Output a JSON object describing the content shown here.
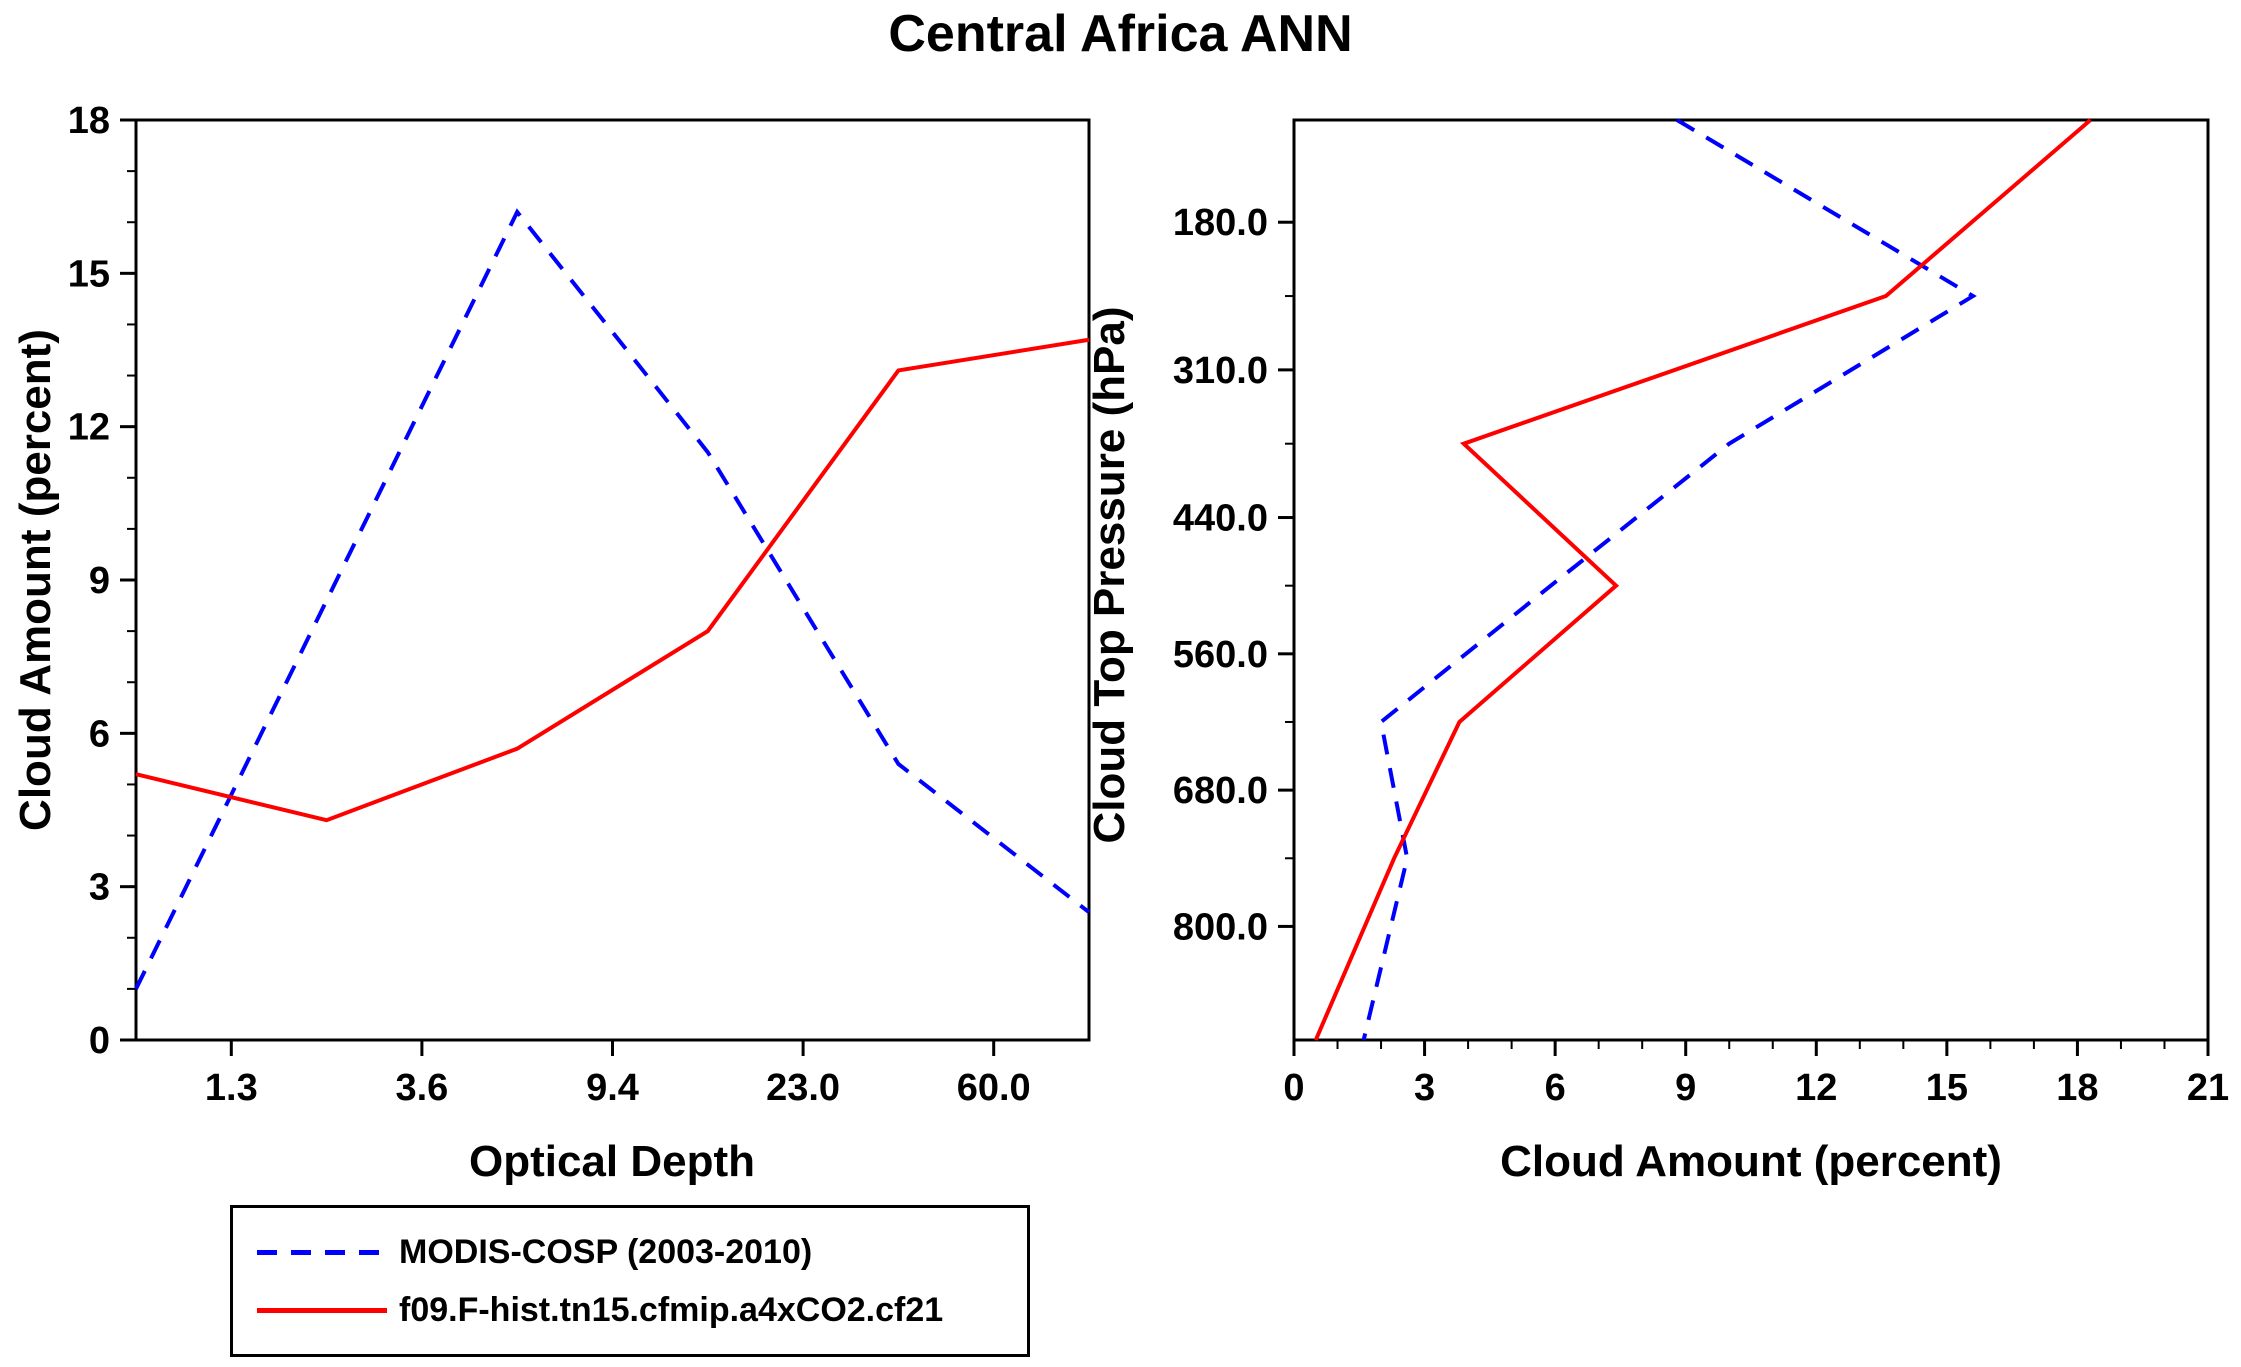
{
  "title": "Central Africa ANN",
  "style": {
    "background": "#ffffff",
    "axis_color": "#000000",
    "modis_color": "#0000ff",
    "model_color": "#ff0000"
  },
  "legend": {
    "entries": [
      {
        "label": "MODIS-COSP (2003-2010)",
        "color": "#0000ff",
        "line_style": "dashed"
      },
      {
        "label": "f09.F-hist.tn15.cfmip.a4xCO2.cf21",
        "color": "#ff0000",
        "line_style": "solid"
      }
    ]
  },
  "chart_data": [
    {
      "type": "line",
      "panel": "left",
      "xlabel": "Optical Depth",
      "ylabel": "Cloud Amount (percent)",
      "x_axis": {
        "kind": "optical-depth-bins",
        "range": [
          0,
          5
        ],
        "tick_positions": [
          0.5,
          1.5,
          2.5,
          3.5,
          4.5
        ],
        "tick_labels": [
          "1.3",
          "3.6",
          "9.4",
          "23.0",
          "60.0"
        ]
      },
      "y_axis": {
        "range": [
          0,
          18
        ],
        "ticks": [
          0,
          3,
          6,
          9,
          12,
          15,
          18
        ],
        "minor_step": 1
      },
      "series": [
        {
          "name": "MODIS-COSP (2003-2010)",
          "color": "#0000ff",
          "line_style": "dashed",
          "x": [
            0,
            1,
            2,
            3,
            4,
            5
          ],
          "values": [
            1.0,
            8.6,
            16.2,
            11.5,
            5.4,
            2.5
          ]
        },
        {
          "name": "f09.F-hist.tn15.cfmip.a4xCO2.cf21",
          "color": "#ff0000",
          "line_style": "solid",
          "x": [
            0,
            1,
            2,
            3,
            4,
            5
          ],
          "values": [
            5.2,
            4.3,
            5.7,
            8.0,
            13.1,
            13.7
          ]
        }
      ]
    },
    {
      "type": "line",
      "panel": "right",
      "xlabel": "Cloud Amount (percent)",
      "ylabel": "Cloud Top Pressure (hPa)",
      "x_axis": {
        "range": [
          0,
          21
        ],
        "ticks": [
          0,
          3,
          6,
          9,
          12,
          15,
          18,
          21
        ],
        "minor_step": 1
      },
      "y_axis": {
        "kind": "pressure-inverted",
        "range": [
          90,
          900
        ],
        "ticks": [
          180.0,
          310.0,
          440.0,
          560.0,
          680.0,
          800.0
        ],
        "tick_format": "one-decimal",
        "minor_ticks": [
          245,
          375,
          500,
          620,
          740
        ]
      },
      "levels": [
        90,
        245,
        375,
        500,
        620,
        740,
        900
      ],
      "series": [
        {
          "name": "MODIS-COSP (2003-2010)",
          "color": "#0000ff",
          "line_style": "dashed",
          "values": [
            8.8,
            15.6,
            10.0,
            5.9,
            2.0,
            2.6,
            1.6
          ]
        },
        {
          "name": "f09.F-hist.tn15.cfmip.a4xCO2.cf21",
          "color": "#ff0000",
          "line_style": "solid",
          "values": [
            18.3,
            13.6,
            3.9,
            7.4,
            3.8,
            2.3,
            0.5
          ]
        }
      ]
    }
  ]
}
